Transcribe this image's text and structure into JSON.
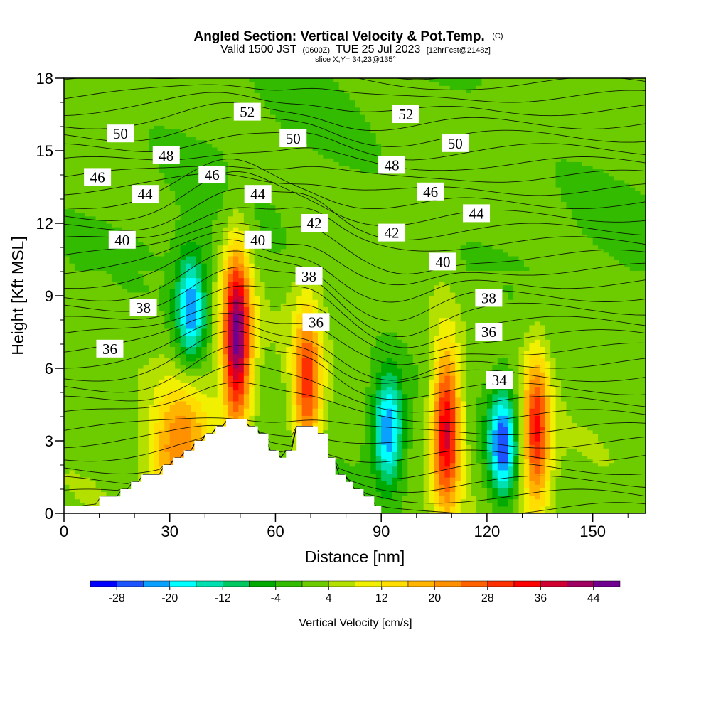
{
  "chart_data": {
    "type": "heatmap",
    "title": "Angled Section: Vertical Velocity & Pot.Temp.",
    "title_suffix": "(C)",
    "valid_prefix": "Valid 1500 JST",
    "valid_zulu": "(0600Z)",
    "valid_date": "TUE 25 Jul 2023",
    "forecast_tag": "[12hrFcst@2148z]",
    "slice_info": "slice X,Y= 34,23@135°",
    "xlabel": "Distance [nm]",
    "ylabel": "Height [Kft MSL]",
    "x_ticks": [
      0,
      30,
      60,
      90,
      120,
      150
    ],
    "y_ticks": [
      0,
      3,
      6,
      9,
      12,
      15,
      18
    ],
    "xlim": [
      0,
      165
    ],
    "ylim": [
      0,
      18
    ],
    "colorbar": {
      "label": "Vertical Velocity [cm/s]",
      "ticks": [
        -28,
        -20,
        -12,
        -4,
        4,
        12,
        20,
        28,
        36,
        44
      ],
      "bounds": [
        -32,
        -28,
        -24,
        -20,
        -16,
        -12,
        -8,
        -4,
        0,
        4,
        8,
        12,
        16,
        20,
        24,
        28,
        32,
        36,
        40,
        44,
        48
      ],
      "colors": [
        "#0000ff",
        "#1c55ff",
        "#0aa0ff",
        "#00ffff",
        "#00e0b0",
        "#00c860",
        "#00aa00",
        "#33bb00",
        "#6dcc00",
        "#b4e000",
        "#f0f000",
        "#ffdd00",
        "#ffb400",
        "#ff9000",
        "#ff6000",
        "#ff3000",
        "#ff0000",
        "#d00030",
        "#a00060",
        "#700090"
      ]
    },
    "terrain_profile": [
      [
        0,
        0.3
      ],
      [
        10,
        0.3
      ],
      [
        10,
        0.7
      ],
      [
        16,
        0.7
      ],
      [
        16,
        1.0
      ],
      [
        19,
        1.0
      ],
      [
        19,
        1.3
      ],
      [
        22,
        1.3
      ],
      [
        22,
        1.6
      ],
      [
        28,
        1.6
      ],
      [
        28,
        2.0
      ],
      [
        31,
        2.0
      ],
      [
        31,
        2.3
      ],
      [
        34,
        2.3
      ],
      [
        34,
        2.6
      ],
      [
        37,
        2.6
      ],
      [
        37,
        3.0
      ],
      [
        40,
        3.0
      ],
      [
        40,
        3.3
      ],
      [
        43,
        3.3
      ],
      [
        43,
        3.6
      ],
      [
        46,
        3.6
      ],
      [
        46,
        3.9
      ],
      [
        52,
        3.9
      ],
      [
        52,
        3.6
      ],
      [
        55,
        3.6
      ],
      [
        55,
        3.3
      ],
      [
        58,
        3.3
      ],
      [
        58,
        2.6
      ],
      [
        61,
        2.6
      ],
      [
        61,
        2.3
      ],
      [
        63,
        2.3
      ],
      [
        63,
        2.6
      ],
      [
        66,
        2.6
      ],
      [
        66,
        3.6
      ],
      [
        72,
        3.6
      ],
      [
        72,
        3.3
      ],
      [
        75,
        3.3
      ],
      [
        75,
        2.3
      ],
      [
        77,
        2.3
      ],
      [
        77,
        1.6
      ],
      [
        80,
        1.6
      ],
      [
        80,
        1.3
      ],
      [
        82,
        1.3
      ],
      [
        82,
        1.0
      ],
      [
        85,
        1.0
      ],
      [
        85,
        0.7
      ],
      [
        88,
        0.7
      ],
      [
        88,
        0.3
      ],
      [
        90,
        0.3
      ],
      [
        90,
        0
      ]
    ],
    "updraft_cells": [
      {
        "x": 49,
        "z": 7.3,
        "max": 44
      },
      {
        "x": 69,
        "z": 5.4,
        "max": 28
      },
      {
        "x": 108.5,
        "z": 3.5,
        "max": 36
      },
      {
        "x": 134,
        "z": 3.4,
        "max": 30
      },
      {
        "x": 36,
        "z": 3.0,
        "max": 12
      },
      {
        "x": 30,
        "z": 2.3,
        "max": 14
      }
    ],
    "downdraft_cells": [
      {
        "x": 36,
        "z": 8.5,
        "max": -26
      },
      {
        "x": 124.5,
        "z": 2.9,
        "max": -30
      },
      {
        "x": 92,
        "z": 3.5,
        "max": -26
      }
    ],
    "isentrope_labels": [
      {
        "text": "52",
        "x": 52,
        "z": 16.6
      },
      {
        "text": "52",
        "x": 97,
        "z": 16.5
      },
      {
        "text": "50",
        "x": 16,
        "z": 15.7
      },
      {
        "text": "50",
        "x": 65,
        "z": 15.5
      },
      {
        "text": "50",
        "x": 111,
        "z": 15.3
      },
      {
        "text": "48",
        "x": 29,
        "z": 14.8
      },
      {
        "text": "48",
        "x": 93,
        "z": 14.4
      },
      {
        "text": "46",
        "x": 9.5,
        "z": 13.9
      },
      {
        "text": "46",
        "x": 42,
        "z": 14.0
      },
      {
        "text": "46",
        "x": 104,
        "z": 13.3
      },
      {
        "text": "44",
        "x": 23,
        "z": 13.2
      },
      {
        "text": "44",
        "x": 55,
        "z": 13.2
      },
      {
        "text": "44",
        "x": 117,
        "z": 12.4
      },
      {
        "text": "42",
        "x": 71,
        "z": 12.0
      },
      {
        "text": "42",
        "x": 93,
        "z": 11.6
      },
      {
        "text": "40",
        "x": 16.5,
        "z": 11.3
      },
      {
        "text": "40",
        "x": 55,
        "z": 11.3
      },
      {
        "text": "40",
        "x": 107.5,
        "z": 10.4
      },
      {
        "text": "38",
        "x": 22.5,
        "z": 8.5
      },
      {
        "text": "38",
        "x": 69.5,
        "z": 9.8
      },
      {
        "text": "38",
        "x": 120.5,
        "z": 8.9
      },
      {
        "text": "36",
        "x": 13,
        "z": 6.8
      },
      {
        "text": "36",
        "x": 71.5,
        "z": 7.9
      },
      {
        "text": "36",
        "x": 120.5,
        "z": 7.5
      },
      {
        "text": "34",
        "x": 123.5,
        "z": 5.5
      }
    ]
  }
}
